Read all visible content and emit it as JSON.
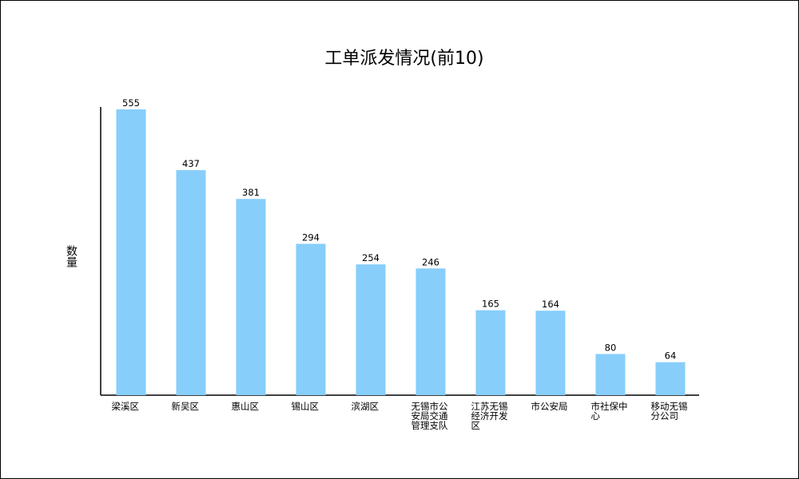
{
  "chart_data": {
    "type": "bar",
    "title": "工单派发情况(前10)",
    "xlabel": "",
    "ylabel": "数量",
    "categories": [
      "梁溪区",
      "新吴区",
      "惠山区",
      "锡山区",
      "滨湖区",
      "无锡市公安局交通管理支队",
      "江苏无锡经济开发区",
      "市公安局",
      "市社保中心",
      "移动无锡分公司"
    ],
    "values": [
      555,
      437,
      381,
      294,
      254,
      246,
      165,
      164,
      80,
      64
    ],
    "ylim": [
      0,
      555
    ],
    "grid": false,
    "legend": "none",
    "data_labels": true,
    "bar_color": "#87CEFA",
    "axis_color": "#000000"
  }
}
